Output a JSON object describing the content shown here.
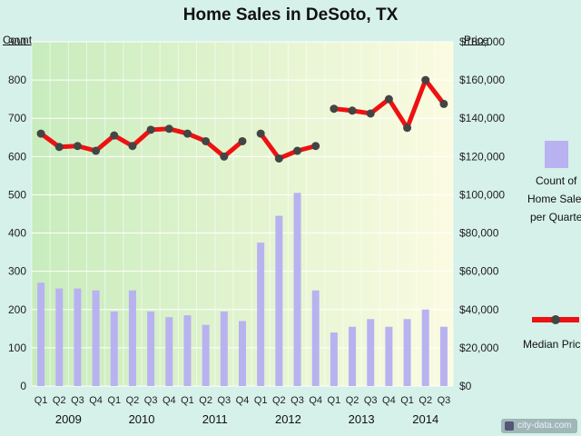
{
  "chart_data": {
    "type": "bar+line",
    "title": "Home Sales in DeSoto, TX",
    "left_axis_label": "Count",
    "right_axis_label": "Price",
    "left_ylim": [
      0,
      900
    ],
    "right_ylim": [
      0,
      180000
    ],
    "left_ticks": [
      "0",
      "100",
      "200",
      "300",
      "400",
      "500",
      "600",
      "700",
      "800",
      "900"
    ],
    "right_ticks": [
      "$0",
      "$20,000",
      "$40,000",
      "$60,000",
      "$80,000",
      "$100,000",
      "$120,000",
      "$140,000",
      "$160,000",
      "$180,000"
    ],
    "quarters": [
      "Q1",
      "Q2",
      "Q3",
      "Q4",
      "Q1",
      "Q2",
      "Q3",
      "Q4",
      "Q1",
      "Q2",
      "Q3",
      "Q4",
      "Q1",
      "Q2",
      "Q3",
      "Q4",
      "Q1",
      "Q2",
      "Q3",
      "Q4",
      "Q1",
      "Q2",
      "Q3"
    ],
    "years": [
      "2009",
      "2010",
      "2011",
      "2012",
      "2013",
      "2014"
    ],
    "grid": true,
    "series": [
      {
        "name": "Count of Home Sales per Quarter",
        "type": "bar",
        "color": "#b8b2f0",
        "values": [
          270,
          255,
          255,
          250,
          195,
          250,
          195,
          180,
          185,
          160,
          195,
          170,
          375,
          445,
          505,
          250,
          140,
          155,
          175,
          155,
          175,
          200,
          155
        ]
      },
      {
        "name": "Median Price",
        "type": "line",
        "color": "#ee1111",
        "marker_color": "#444444",
        "values": [
          132000,
          125000,
          125500,
          123000,
          131000,
          125500,
          134000,
          134500,
          132000,
          128000,
          120000,
          128000,
          132000,
          119000,
          123000,
          125500,
          145000,
          144000,
          142500,
          150000,
          135000,
          160000,
          147500
        ],
        "connected_to_next": [
          true,
          true,
          true,
          true,
          true,
          true,
          true,
          true,
          true,
          true,
          true,
          false,
          true,
          true,
          true,
          false,
          true,
          true,
          true,
          true,
          true,
          true,
          false
        ]
      }
    ]
  },
  "legend": {
    "bar_lines": [
      "Count of",
      "Home Sale",
      "per Quarte"
    ],
    "line_label": "Median Pric"
  },
  "watermark": "city-data.com",
  "colors": {
    "background": "#d6f0ea",
    "plot_left": "#c8ecbd",
    "plot_right": "#fbfbe1",
    "bar": "#b8b2f0",
    "line": "#ee1111"
  }
}
